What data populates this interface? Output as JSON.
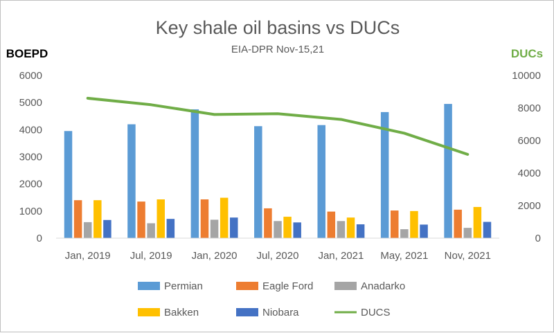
{
  "chart_data": {
    "type": "bar",
    "title": "Key shale oil basins vs DUCs",
    "subtitle": "EIA-DPR Nov-15,21",
    "ylabel_left": "BOEPD",
    "ylabel_right": "DUCs",
    "categories": [
      "Jan, 2019",
      "Jul, 2019",
      "Jan, 2020",
      "Jul, 2020",
      "Jan, 2021",
      "May, 2021",
      "Nov, 2021"
    ],
    "ylim_left": [
      0,
      6000
    ],
    "yticks_left": [
      0,
      1000,
      2000,
      3000,
      4000,
      5000,
      6000
    ],
    "ylim_right": [
      0,
      10000
    ],
    "yticks_right": [
      0,
      2000,
      4000,
      6000,
      8000,
      10000
    ],
    "grid": false,
    "legend_position": "bottom",
    "series": [
      {
        "name": "Permian",
        "type": "bar",
        "axis": "left",
        "color": "#5B9BD5",
        "values": [
          3950,
          4200,
          4750,
          4130,
          4170,
          4650,
          4950
        ]
      },
      {
        "name": "Eagle Ford",
        "type": "bar",
        "axis": "left",
        "color": "#ED7D31",
        "values": [
          1400,
          1350,
          1430,
          1100,
          980,
          1020,
          1050
        ]
      },
      {
        "name": "Anadarko",
        "type": "bar",
        "axis": "left",
        "color": "#A5A5A5",
        "values": [
          590,
          550,
          680,
          630,
          630,
          330,
          380
        ]
      },
      {
        "name": "Bakken",
        "type": "bar",
        "axis": "left",
        "color": "#FFC000",
        "values": [
          1400,
          1430,
          1490,
          790,
          760,
          1000,
          1150
        ]
      },
      {
        "name": "Niobara",
        "type": "bar",
        "axis": "left",
        "color": "#4472C4",
        "values": [
          670,
          710,
          760,
          580,
          510,
          500,
          600
        ]
      },
      {
        "name": "DUCS",
        "type": "line",
        "axis": "right",
        "color": "#70AD47",
        "values": [
          8600,
          8200,
          7600,
          7650,
          7300,
          6450,
          5150
        ]
      }
    ]
  }
}
